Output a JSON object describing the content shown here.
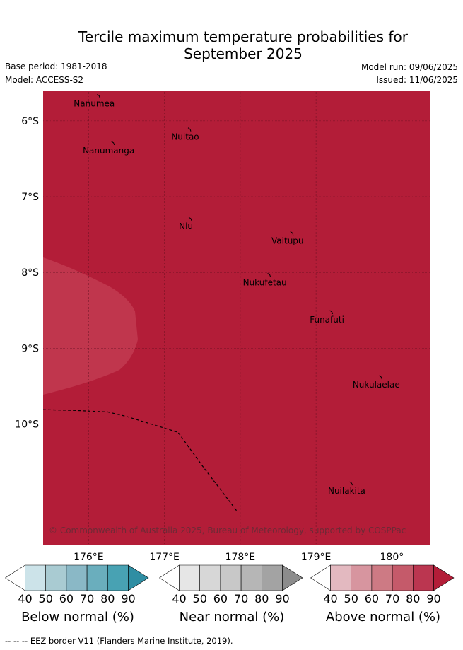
{
  "title_line1": "Tercile maximum temperature probabilities for",
  "title_line2": "September 2025",
  "base_period": "Base period: 1981-2018",
  "model": "Model: ACCESS-S2",
  "model_run": "Model run: 09/06/2025",
  "issued": "Issued: 11/06/2025",
  "map": {
    "lon_range": [
      175.4,
      180.5
    ],
    "lat_range": [
      -11.6,
      -5.6
    ],
    "lon_ticks": [
      176,
      177,
      178,
      179,
      180
    ],
    "lon_tick_labels": [
      "176°E",
      "177°E",
      "178°E",
      "179°E",
      "180°"
    ],
    "lat_ticks": [
      -6,
      -7,
      -8,
      -9,
      -10
    ],
    "lat_tick_labels": [
      "6°S",
      "7°S",
      "8°S",
      "9°S",
      "10°S"
    ],
    "fill_color": "#b31d38",
    "lighter_zone_color": "#c0364d",
    "places": [
      {
        "name": "Nanumea",
        "lon": 176.13,
        "lat": -5.67
      },
      {
        "name": "Nuitao",
        "lon": 177.33,
        "lat": -6.11
      },
      {
        "name": "Nanumanga",
        "lon": 176.32,
        "lat": -6.29
      },
      {
        "name": "Niu",
        "lon": 177.34,
        "lat": -7.29
      },
      {
        "name": "Vaitupu",
        "lon": 178.68,
        "lat": -7.48
      },
      {
        "name": "Nukufetau",
        "lon": 178.38,
        "lat": -8.03
      },
      {
        "name": "Funafuti",
        "lon": 179.2,
        "lat": -8.52
      },
      {
        "name": "Nukulaelae",
        "lon": 179.85,
        "lat": -9.38
      },
      {
        "name": "Nuilakita",
        "lon": 179.46,
        "lat": -10.78
      }
    ],
    "eez_line": [
      [
        175.4,
        -9.81
      ],
      [
        175.8,
        -9.82
      ],
      [
        176.25,
        -9.84
      ],
      [
        176.5,
        -9.9
      ],
      [
        177.18,
        -10.11
      ],
      [
        177.5,
        -10.55
      ],
      [
        177.95,
        -11.14
      ]
    ],
    "copyright": "© Commonwealth of Australia 2025, Bureau of Meteorology, supported by COSPPac"
  },
  "colorbars": [
    {
      "title": "Below normal (%)",
      "ticks": [
        "40",
        "50",
        "60",
        "70",
        "80",
        "90"
      ],
      "colors": [
        "#ffffff",
        "#cce3e9",
        "#a9cbd2",
        "#8ab8c6",
        "#6aaebd",
        "#48a2b3",
        "#2f8ea3"
      ]
    },
    {
      "title": "Near normal (%)",
      "ticks": [
        "40",
        "50",
        "60",
        "70",
        "80",
        "90"
      ],
      "colors": [
        "#ffffff",
        "#e6e6e6",
        "#d7d7d7",
        "#c8c8c8",
        "#b6b6b6",
        "#a3a3a3",
        "#8c8c8c"
      ]
    },
    {
      "title": "Above normal (%)",
      "ticks": [
        "40",
        "50",
        "60",
        "70",
        "80",
        "90"
      ],
      "colors": [
        "#ffffff",
        "#e3b9c0",
        "#d7959f",
        "#cd7a84",
        "#c55a6a",
        "#bb3650",
        "#b31d38"
      ]
    }
  ],
  "footnote": "--  --  -- EEZ border V11 (Flanders Marine Institute, 2019)."
}
